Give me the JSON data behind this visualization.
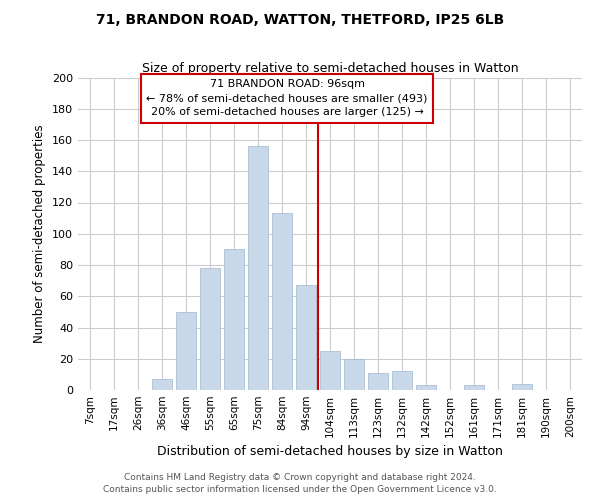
{
  "title": "71, BRANDON ROAD, WATTON, THETFORD, IP25 6LB",
  "subtitle": "Size of property relative to semi-detached houses in Watton",
  "xlabel": "Distribution of semi-detached houses by size in Watton",
  "ylabel": "Number of semi-detached properties",
  "bar_labels": [
    "7sqm",
    "17sqm",
    "26sqm",
    "36sqm",
    "46sqm",
    "55sqm",
    "65sqm",
    "75sqm",
    "84sqm",
    "94sqm",
    "104sqm",
    "113sqm",
    "123sqm",
    "132sqm",
    "142sqm",
    "152sqm",
    "161sqm",
    "171sqm",
    "181sqm",
    "190sqm",
    "200sqm"
  ],
  "bar_values": [
    0,
    0,
    0,
    7,
    50,
    78,
    90,
    156,
    113,
    67,
    25,
    20,
    11,
    12,
    3,
    0,
    3,
    0,
    4,
    0,
    0
  ],
  "bar_color": "#c8d8e8",
  "bar_edgecolor": "#a0b8d0",
  "grid_color": "#cccccc",
  "vline_x": 9.5,
  "vline_color": "#cc0000",
  "annotation_title": "71 BRANDON ROAD: 96sqm",
  "annotation_line1": "← 78% of semi-detached houses are smaller (493)",
  "annotation_line2": "20% of semi-detached houses are larger (125) →",
  "annotation_box_edgecolor": "#cc0000",
  "ylim": [
    0,
    200
  ],
  "yticks": [
    0,
    20,
    40,
    60,
    80,
    100,
    120,
    140,
    160,
    180,
    200
  ],
  "footer1": "Contains HM Land Registry data © Crown copyright and database right 2024.",
  "footer2": "Contains public sector information licensed under the Open Government Licence v3.0."
}
